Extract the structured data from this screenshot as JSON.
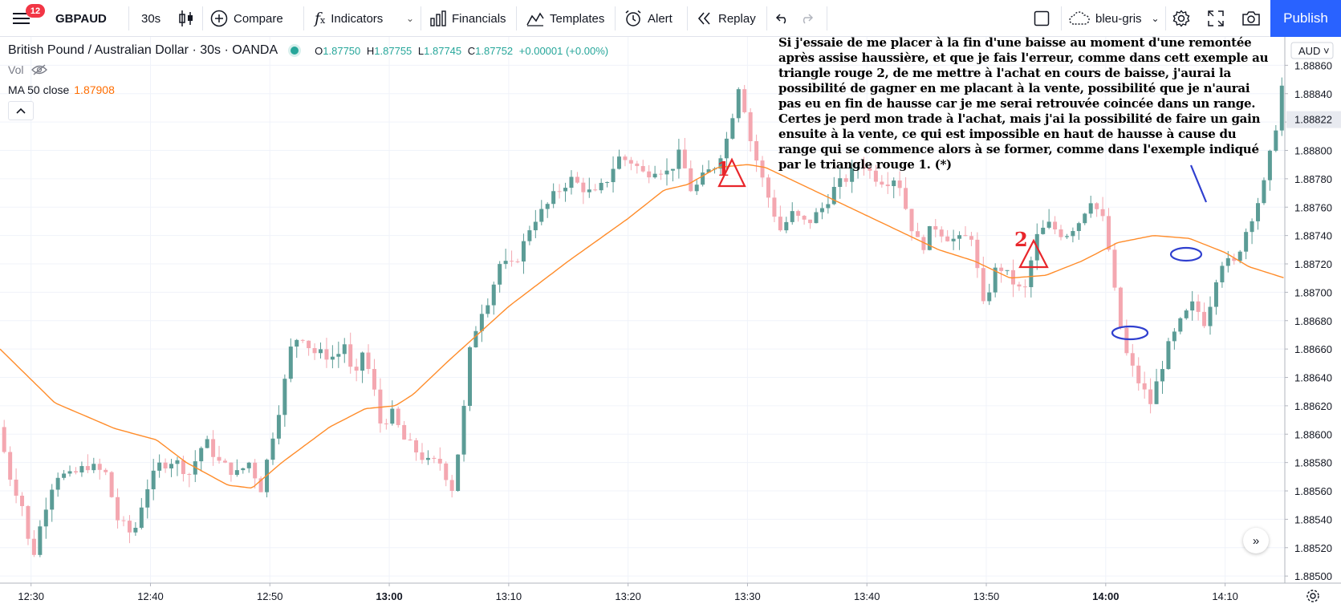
{
  "toolbar": {
    "menu_badge": "12",
    "symbol": "GBPAUD",
    "interval": "30s",
    "compare_label": "Compare",
    "indicators_label": "Indicators",
    "financials_label": "Financials",
    "templates_label": "Templates",
    "alert_label": "Alert",
    "replay_label": "Replay",
    "theme_label": "bleu-gris",
    "publish_label": "Publish"
  },
  "legend": {
    "title": "British Pound / Australian Dollar · 30s · OANDA",
    "o_key": "O",
    "o_val": "1.87750",
    "h_key": "H",
    "h_val": "1.87755",
    "l_key": "L",
    "l_val": "1.87745",
    "c_key": "C",
    "c_val": "1.87752",
    "change": "+0.00001 (+0.00%)",
    "vol_label": "Vol",
    "ma_label": "MA 50 close",
    "ma_value": "1.87908"
  },
  "annotation": {
    "text": "Si j'essaie de me placer à la fin d'une baisse au moment d'une remontée après assise haussière, et que je fais l'erreur, comme dans cett exemple au triangle rouge 2, de me mettre à l'achat en cours de baisse, j'aurai la possibilité de gagner en me placant à la vente, possibilité que je n'aurai pas eu en fin de hausse car je me serai retrouvée coincée dans un range. Certes je perd mon trade à l'achat, mais j'ai la possibilité de faire un gain ensuite à la vente, ce qui est impossible en haut de hausse à cause du range qui se commence alors à se former, comme dans l'exemple indiqué par le triangle rouge 1. (*)",
    "marker1": "1",
    "marker2": "2"
  },
  "colors": {
    "up": "#26a69a",
    "up_candle": "#5b9c96",
    "down": "#ef9a9a",
    "down_candle": "#f4a7b0",
    "ma": "#ff8c2a",
    "accent": "#2962ff",
    "marker": "#e8262b",
    "ellipse": "#2f3fcf"
  },
  "chart_data": {
    "type": "candlestick",
    "symbol": "GBPAUD",
    "interval": "30s",
    "currency": "AUD",
    "price_label": "1.88822",
    "y_ticks": [
      1.8886,
      1.8884,
      1.8882,
      1.888,
      1.8878,
      1.8876,
      1.8874,
      1.8872,
      1.887,
      1.8868,
      1.8866,
      1.8864,
      1.8862,
      1.886,
      1.8858,
      1.8856,
      1.8854,
      1.8852,
      1.885
    ],
    "y_tick_labels": [
      "1.88860",
      "1.88840",
      "1.88820",
      "1.88800",
      "1.88780",
      "1.88760",
      "1.88740",
      "1.88720",
      "1.88700",
      "1.88680",
      "1.88660",
      "1.88640",
      "1.88620",
      "1.88600",
      "1.88580",
      "1.88560",
      "1.88540",
      "1.88520",
      "1.88500"
    ],
    "x_labels": [
      {
        "t": "12:30",
        "bold": false
      },
      {
        "t": "12:40",
        "bold": false
      },
      {
        "t": "12:50",
        "bold": false
      },
      {
        "t": "13:00",
        "bold": true
      },
      {
        "t": "13:10",
        "bold": false
      },
      {
        "t": "13:20",
        "bold": false
      },
      {
        "t": "13:30",
        "bold": false
      },
      {
        "t": "13:40",
        "bold": false
      },
      {
        "t": "13:50",
        "bold": false
      },
      {
        "t": "14:00",
        "bold": true
      },
      {
        "t": "14:10",
        "bold": false
      }
    ],
    "ylim": [
      1.88495,
      1.8888
    ],
    "xlim_minutes": [
      747.4,
      855.0
    ],
    "anchors": [
      [
        747.5,
        1.88605
      ],
      [
        748.5,
        1.8857
      ],
      [
        749.5,
        1.8855
      ],
      [
        750.3,
        1.8851
      ],
      [
        751.3,
        1.88545
      ],
      [
        752.3,
        1.88572
      ],
      [
        753.5,
        1.8857
      ],
      [
        755.0,
        1.88578
      ],
      [
        756.5,
        1.88572
      ],
      [
        757.5,
        1.8854
      ],
      [
        758.8,
        1.88528
      ],
      [
        759.8,
        1.8856
      ],
      [
        761.0,
        1.88578
      ],
      [
        762.2,
        1.88582
      ],
      [
        763.5,
        1.88572
      ],
      [
        764.8,
        1.88596
      ],
      [
        766.0,
        1.8858
      ],
      [
        767.5,
        1.88572
      ],
      [
        768.5,
        1.8858
      ],
      [
        769.5,
        1.88562
      ],
      [
        770.5,
        1.886
      ],
      [
        771.3,
        1.88628
      ],
      [
        772.0,
        1.8866
      ],
      [
        772.8,
        1.88672
      ],
      [
        773.8,
        1.88658
      ],
      [
        774.8,
        1.88656
      ],
      [
        775.8,
        1.88654
      ],
      [
        776.5,
        1.88664
      ],
      [
        777.3,
        1.88634
      ],
      [
        778.0,
        1.88658
      ],
      [
        778.8,
        1.88638
      ],
      [
        779.5,
        1.88608
      ],
      [
        780.5,
        1.88614
      ],
      [
        781.5,
        1.88596
      ],
      [
        782.5,
        1.88588
      ],
      [
        783.5,
        1.8858
      ],
      [
        784.5,
        1.8858
      ],
      [
        785.5,
        1.88562
      ],
      [
        786.3,
        1.88602
      ],
      [
        787.0,
        1.88658
      ],
      [
        787.8,
        1.88685
      ],
      [
        788.6,
        1.88696
      ],
      [
        789.5,
        1.8872
      ],
      [
        790.6,
        1.88718
      ],
      [
        791.4,
        1.88732
      ],
      [
        792.2,
        1.8875
      ],
      [
        793.2,
        1.88758
      ],
      [
        794.2,
        1.8877
      ],
      [
        795.4,
        1.8878
      ],
      [
        796.4,
        1.88774
      ],
      [
        797.4,
        1.88768
      ],
      [
        798.4,
        1.88778
      ],
      [
        799.4,
        1.88795
      ],
      [
        800.6,
        1.88792
      ],
      [
        801.6,
        1.88783
      ],
      [
        802.6,
        1.88788
      ],
      [
        803.6,
        1.88784
      ],
      [
        804.6,
        1.88798
      ],
      [
        805.6,
        1.8877
      ],
      [
        806.6,
        1.88782
      ],
      [
        807.6,
        1.8879
      ],
      [
        808.6,
        1.8881
      ],
      [
        809.6,
        1.8885
      ],
      [
        810.4,
        1.8881
      ],
      [
        811.4,
        1.88782
      ],
      [
        812.2,
        1.88762
      ],
      [
        813.0,
        1.88744
      ],
      [
        814.0,
        1.88755
      ],
      [
        815.2,
        1.88748
      ],
      [
        816.4,
        1.88758
      ],
      [
        817.6,
        1.88774
      ],
      [
        818.8,
        1.88782
      ],
      [
        819.8,
        1.88792
      ],
      [
        820.8,
        1.88782
      ],
      [
        821.8,
        1.88778
      ],
      [
        822.8,
        1.88782
      ],
      [
        823.8,
        1.8875
      ],
      [
        824.8,
        1.8873
      ],
      [
        825.8,
        1.88748
      ],
      [
        826.8,
        1.8874
      ],
      [
        827.8,
        1.88736
      ],
      [
        829.0,
        1.8874
      ],
      [
        830.0,
        1.8869
      ],
      [
        831.2,
        1.8872
      ],
      [
        832.2,
        1.8871
      ],
      [
        833.4,
        1.88698
      ],
      [
        834.4,
        1.88738
      ],
      [
        835.4,
        1.88748
      ],
      [
        836.8,
        1.8874
      ],
      [
        838.0,
        1.8875
      ],
      [
        839.0,
        1.88766
      ],
      [
        840.2,
        1.88748
      ],
      [
        841.0,
        1.887
      ],
      [
        841.8,
        1.8866
      ],
      [
        842.8,
        1.8864
      ],
      [
        844.0,
        1.88622
      ],
      [
        845.4,
        1.8866
      ],
      [
        846.6,
        1.8868
      ],
      [
        847.6,
        1.88692
      ],
      [
        848.6,
        1.88678
      ],
      [
        849.8,
        1.88722
      ],
      [
        851.0,
        1.8872
      ],
      [
        852.2,
        1.88748
      ],
      [
        853.4,
        1.88772
      ],
      [
        854.4,
        1.88812
      ],
      [
        855.0,
        1.88845
      ]
    ],
    "ma_anchors": [
      [
        747.4,
        1.8866
      ],
      [
        752.0,
        1.88622
      ],
      [
        757.0,
        1.88604
      ],
      [
        760.5,
        1.88596
      ],
      [
        763.0,
        1.8858
      ],
      [
        766.5,
        1.88564
      ],
      [
        768.5,
        1.88562
      ],
      [
        771.0,
        1.8858
      ],
      [
        775.0,
        1.88605
      ],
      [
        778.0,
        1.88618
      ],
      [
        780.5,
        1.8862
      ],
      [
        782.0,
        1.88628
      ],
      [
        785.0,
        1.88652
      ],
      [
        790.0,
        1.8869
      ],
      [
        795.0,
        1.88722
      ],
      [
        800.0,
        1.88752
      ],
      [
        803.0,
        1.88772
      ],
      [
        805.0,
        1.88776
      ],
      [
        807.5,
        1.88788
      ],
      [
        810.0,
        1.8879
      ],
      [
        811.5,
        1.88788
      ],
      [
        814.0,
        1.88778
      ],
      [
        818.0,
        1.88762
      ],
      [
        822.0,
        1.88746
      ],
      [
        826.0,
        1.8873
      ],
      [
        829.0,
        1.88722
      ],
      [
        832.0,
        1.8871
      ],
      [
        835.0,
        1.88712
      ],
      [
        838.0,
        1.88722
      ],
      [
        841.0,
        1.88735
      ],
      [
        844.0,
        1.8874
      ],
      [
        847.0,
        1.88738
      ],
      [
        850.0,
        1.88728
      ],
      [
        852.0,
        1.88718
      ],
      [
        855.0,
        1.8871
      ]
    ],
    "ma_name": "MA 50 close"
  }
}
